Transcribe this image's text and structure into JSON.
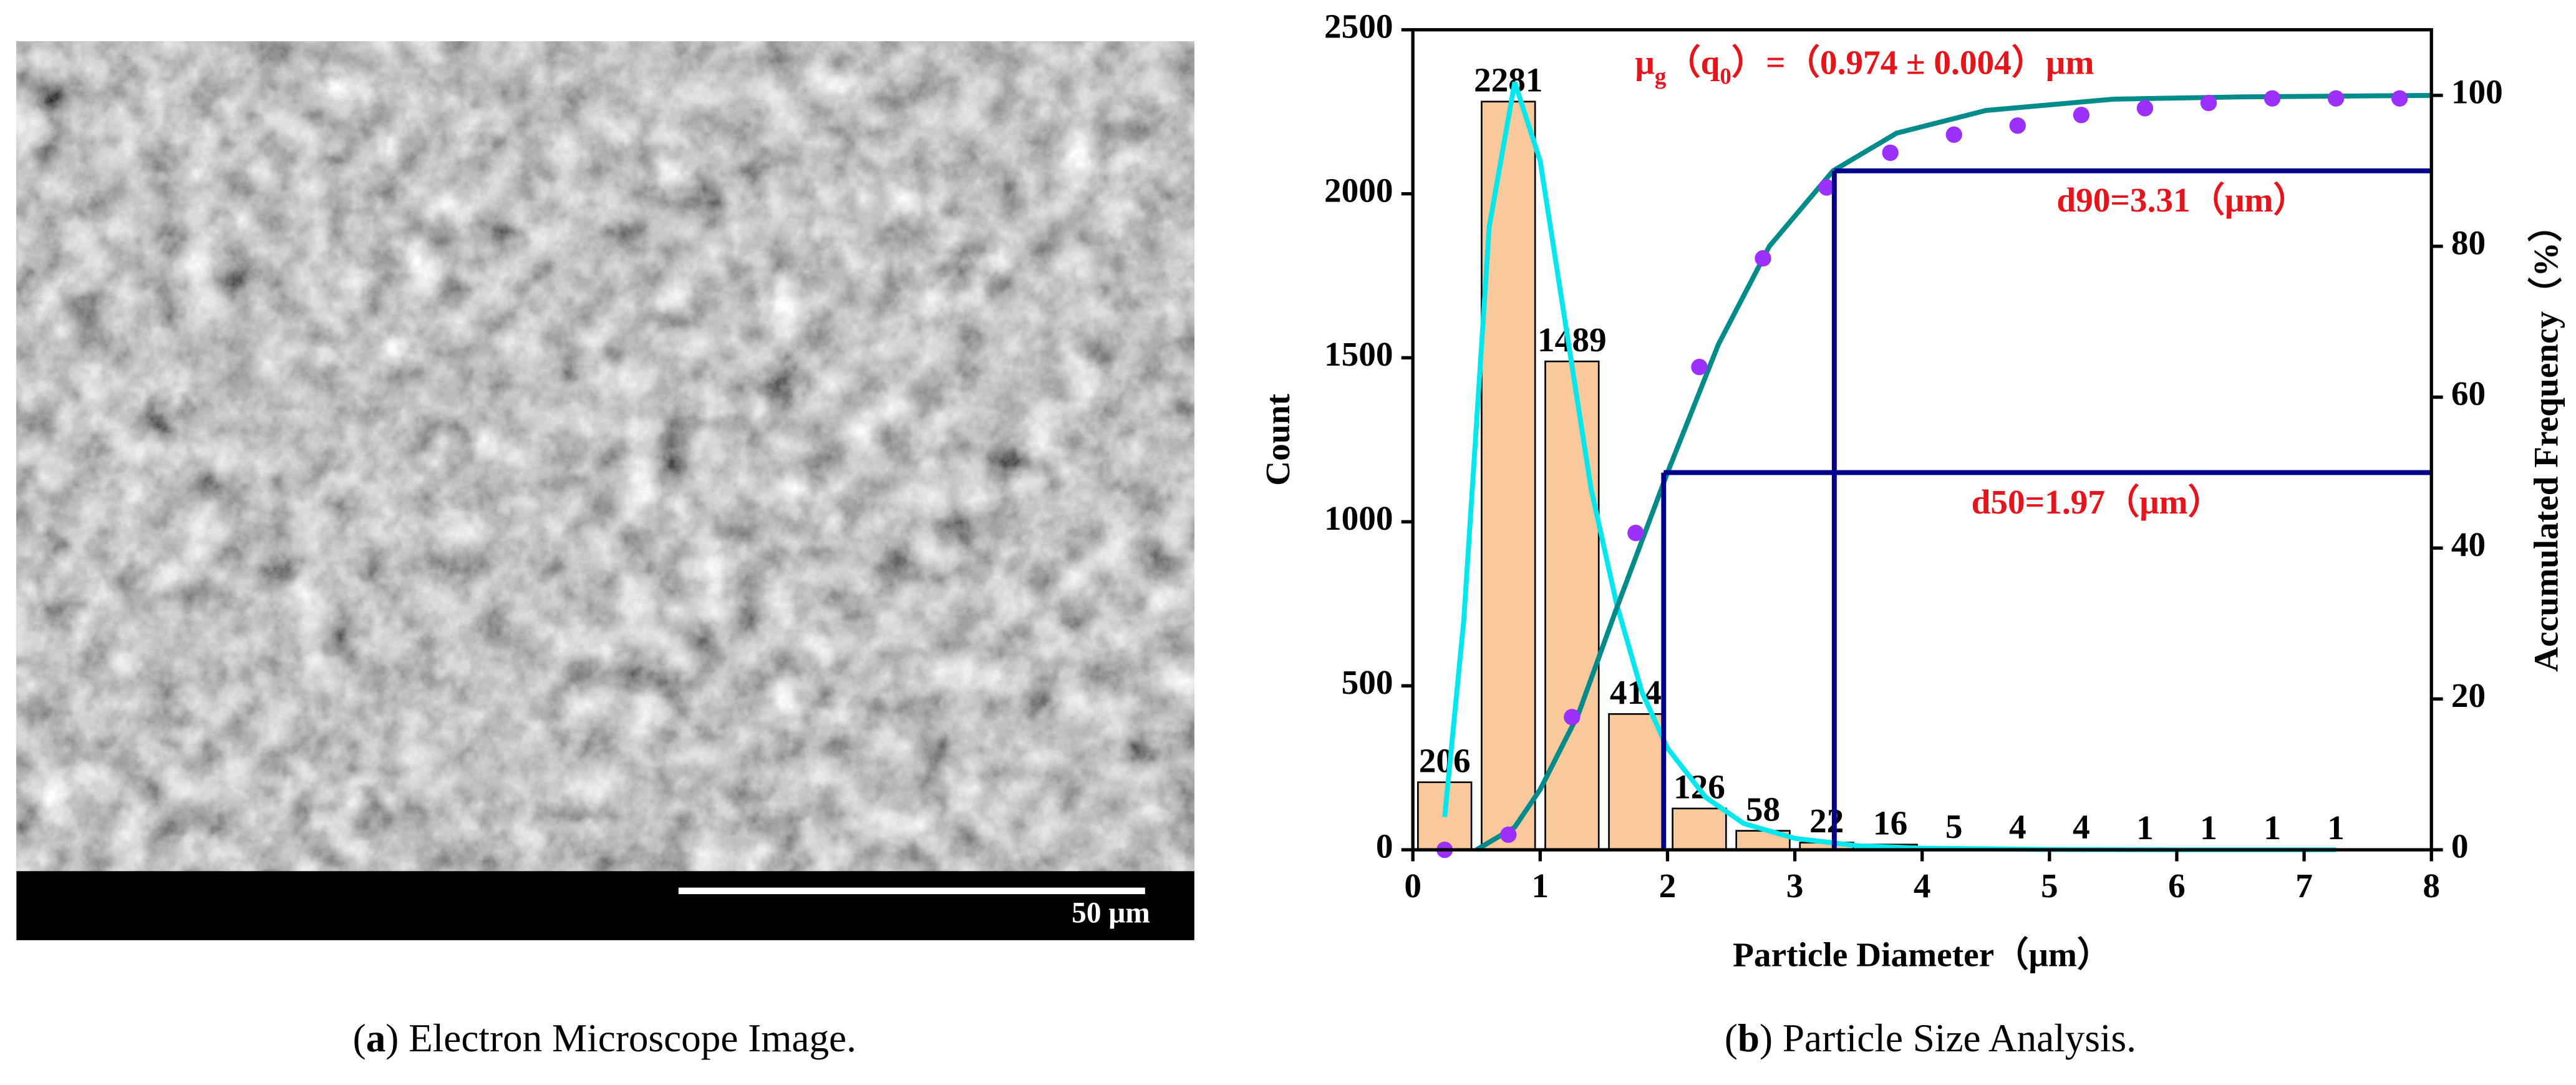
{
  "figure": {
    "panel_a": {
      "scale_bar_label": "50 μm",
      "caption": {
        "open": "(",
        "label": "a",
        "rest": ") Electron Microscope Image."
      }
    },
    "panel_b": {
      "caption": {
        "open": "(",
        "label": "b",
        "rest": ") Particle Size Analysis."
      }
    }
  },
  "chart_data": {
    "type": "histogram",
    "bins": [
      0,
      0.5,
      1,
      1.5,
      2,
      2.5,
      3,
      3.5,
      4,
      4.5,
      5,
      5.5,
      6,
      6.5,
      7,
      7.5
    ],
    "values": [
      206,
      2281,
      1489,
      414,
      126,
      58,
      22,
      16,
      5,
      4,
      4,
      1,
      1,
      1,
      1
    ],
    "color": "#f9c89b",
    "xlabel": "Particle Diameter（μm）",
    "ylabel": "Count",
    "y2label": "Accumulated Frequency（%）",
    "xlim": [
      0,
      8
    ],
    "xticks": [
      0,
      1,
      2,
      3,
      4,
      5,
      6,
      7,
      8
    ],
    "ylim": [
      0,
      2500
    ],
    "yticks": [
      0,
      500,
      1000,
      1500,
      2000,
      2500
    ],
    "y2lim": [
      0,
      108.7
    ],
    "y2ticks": [
      0,
      20,
      40,
      60,
      80,
      100
    ],
    "annotation": [
      {
        "text": "μ"
      },
      {
        "text": "g",
        "sub": true
      },
      {
        "text": "（q"
      },
      {
        "text": "0",
        "sub": true
      },
      {
        "text": "）=（0.974 ± 0.004）μm"
      }
    ],
    "curves": [
      {
        "type": "line",
        "color": "#00e8ee",
        "x": [
          0.25,
          0.4,
          0.6,
          0.8,
          1.0,
          1.2,
          1.4,
          1.6,
          1.8,
          2.0,
          2.3,
          2.6,
          3.0,
          3.5,
          4.0,
          5.0,
          6.0,
          7.25
        ],
        "values": [
          100,
          700,
          1900,
          2340,
          2100,
          1600,
          1100,
          750,
          480,
          310,
          160,
          80,
          35,
          12,
          5,
          1,
          0,
          0
        ]
      },
      {
        "type": "line",
        "color": "#008b8b",
        "axis": "y2",
        "x": [
          0.5,
          0.8,
          1.0,
          1.3,
          1.6,
          2.0,
          2.4,
          2.8,
          3.3,
          3.8,
          4.5,
          5.5,
          6.5,
          8.0
        ],
        "values": [
          0,
          3,
          8,
          18,
          32,
          50,
          67,
          80,
          90,
          95,
          98,
          99.5,
          99.8,
          100
        ]
      },
      {
        "type": "scatter",
        "color": "#9b30ff",
        "axis": "y2",
        "x": [
          0.25,
          0.75,
          1.25,
          1.75,
          2.25,
          2.75,
          3.25,
          3.75,
          4.25,
          4.75,
          5.25,
          5.75,
          6.25,
          6.75,
          7.25,
          7.75
        ],
        "values": [
          0,
          2,
          17.6,
          42,
          64,
          78.4,
          87.8,
          92.4,
          94.8,
          96,
          97.4,
          98.3,
          99,
          99.6,
          99.6,
          99.6
        ]
      }
    ],
    "reference_lines": [
      {
        "x": 1.97,
        "y2": 50,
        "label": "d50=1.97（μm）",
        "color": "#00008b"
      },
      {
        "x": 3.31,
        "y2": 90,
        "label": "d90=3.31（μm）",
        "color": "#00008b"
      }
    ]
  }
}
